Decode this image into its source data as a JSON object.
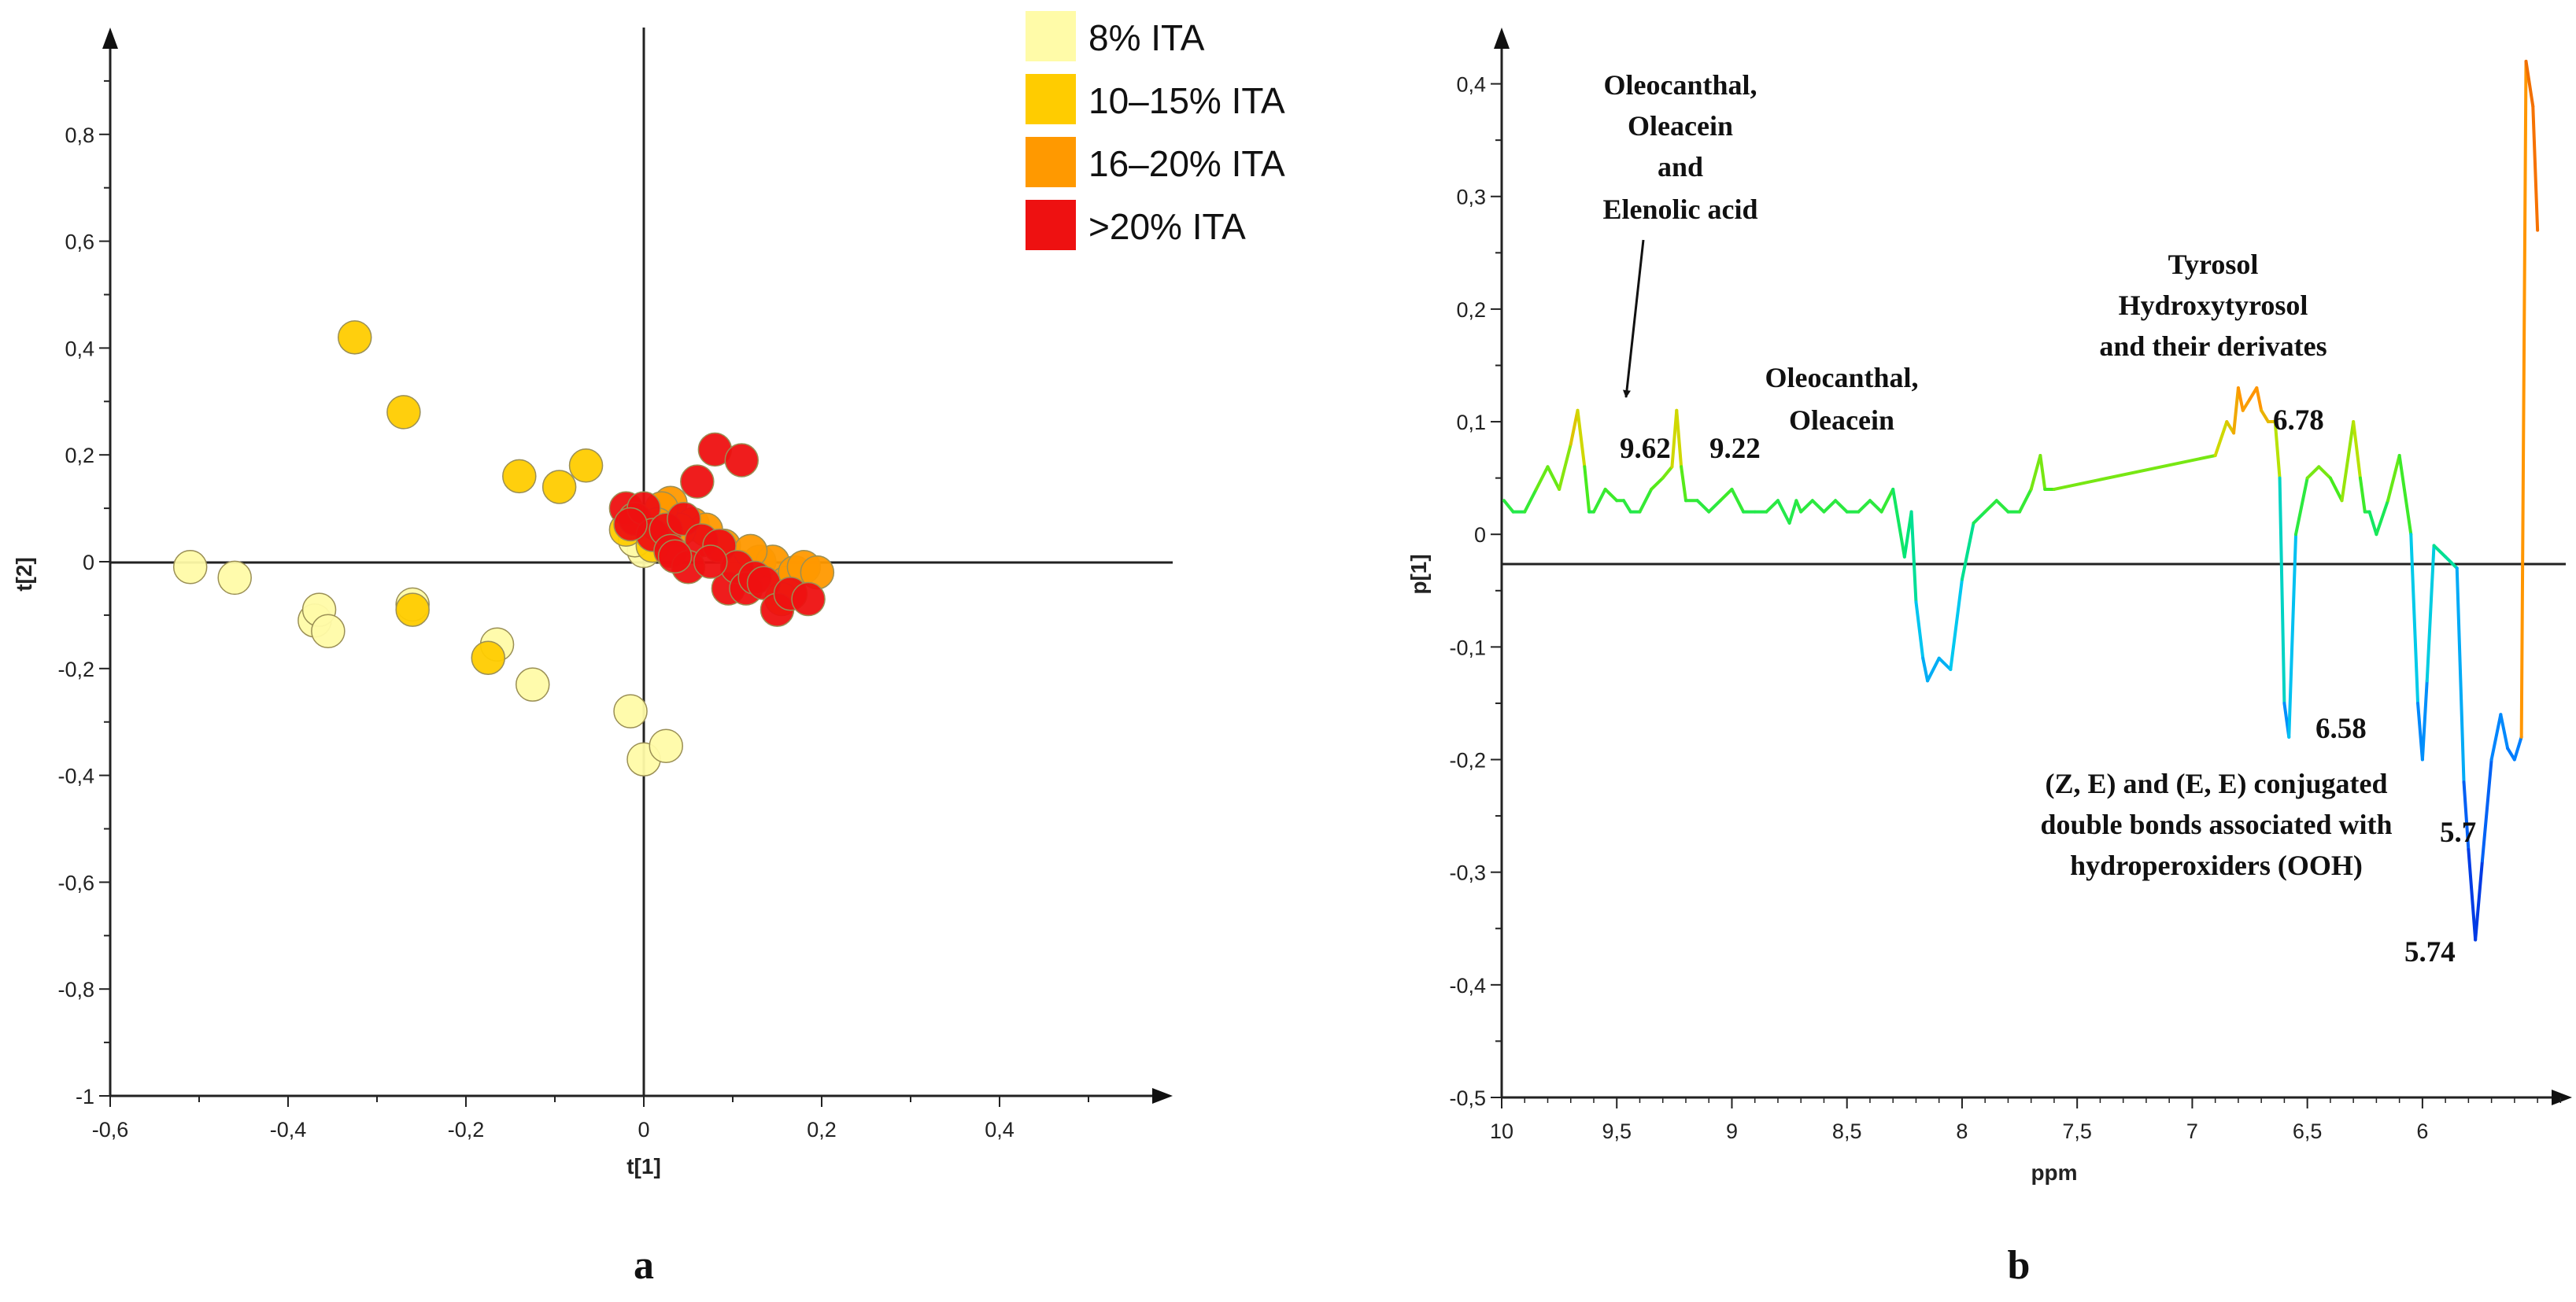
{
  "chart_data": [
    {
      "panel_label": "a",
      "type": "scatter",
      "xlabel": "t[1]",
      "ylabel": "t[2]",
      "xlim": [
        -0.6,
        0.6
      ],
      "ylim": [
        -1,
        1
      ],
      "x_ticks": [
        "-0,6",
        "-0,4",
        "-0,2",
        "0",
        "0,2",
        "0,4"
      ],
      "y_ticks": [
        "-1",
        "-0,8",
        "-0,6",
        "-0,4",
        "-0,2",
        "0",
        "0,2",
        "0,4",
        "0,6",
        "0,8"
      ],
      "legend": [
        {
          "label": "8% ITA",
          "color": "#FFFBA8"
        },
        {
          "label": "10–15% ITA",
          "color": "#FFCC00"
        },
        {
          "label": "16–20% ITA",
          "color": "#FF9900"
        },
        {
          "label": ">20% ITA",
          "color": "#EE1111"
        }
      ],
      "series": [
        {
          "name": "8% ITA",
          "color": "#FFFBA8",
          "points": [
            [
              -0.51,
              -0.01
            ],
            [
              -0.46,
              -0.03
            ],
            [
              -0.37,
              -0.11
            ],
            [
              -0.365,
              -0.09
            ],
            [
              -0.355,
              -0.13
            ],
            [
              -0.26,
              -0.08
            ],
            [
              -0.165,
              -0.155
            ],
            [
              -0.125,
              -0.23
            ],
            [
              -0.015,
              -0.28
            ],
            [
              0.0,
              -0.37
            ],
            [
              0.025,
              -0.345
            ],
            [
              0.0,
              0.02
            ],
            [
              -0.01,
              0.04
            ]
          ]
        },
        {
          "name": "10–15% ITA",
          "color": "#FFCC00",
          "points": [
            [
              -0.325,
              0.42
            ],
            [
              -0.27,
              0.28
            ],
            [
              -0.26,
              -0.09
            ],
            [
              -0.175,
              -0.18
            ],
            [
              -0.14,
              0.16
            ],
            [
              -0.095,
              0.14
            ],
            [
              -0.065,
              0.18
            ],
            [
              -0.02,
              0.06
            ],
            [
              0.01,
              0.03
            ]
          ]
        },
        {
          "name": "16–20% ITA",
          "color": "#FF9900",
          "points": [
            [
              0.03,
              0.11
            ],
            [
              0.055,
              0.07
            ],
            [
              0.07,
              0.06
            ],
            [
              0.09,
              0.03
            ],
            [
              0.11,
              -0.01
            ],
            [
              0.13,
              0.0
            ],
            [
              0.145,
              0.0
            ],
            [
              0.16,
              -0.04
            ],
            [
              0.17,
              -0.02
            ],
            [
              0.18,
              -0.01
            ],
            [
              0.195,
              -0.02
            ],
            [
              0.155,
              -0.07
            ],
            [
              0.12,
              0.02
            ],
            [
              0.04,
              0.06
            ],
            [
              0.02,
              0.1
            ],
            [
              0.015,
              0.07
            ]
          ]
        },
        {
          "name": ">20% ITA",
          "color": "#EE1111",
          "points": [
            [
              -0.02,
              0.1
            ],
            [
              -0.01,
              0.08
            ],
            [
              0.0,
              0.1
            ],
            [
              0.01,
              0.05
            ],
            [
              0.025,
              0.06
            ],
            [
              0.03,
              0.02
            ],
            [
              0.045,
              0.08
            ],
            [
              0.06,
              0.15
            ],
            [
              0.065,
              0.04
            ],
            [
              0.08,
              0.21
            ],
            [
              0.085,
              0.03
            ],
            [
              0.095,
              -0.05
            ],
            [
              0.105,
              -0.01
            ],
            [
              0.11,
              0.19
            ],
            [
              0.115,
              -0.05
            ],
            [
              0.125,
              -0.03
            ],
            [
              0.135,
              -0.04
            ],
            [
              0.15,
              -0.09
            ],
            [
              0.165,
              -0.06
            ],
            [
              0.185,
              -0.07
            ],
            [
              0.05,
              -0.01
            ],
            [
              0.035,
              0.01
            ],
            [
              -0.015,
              0.07
            ],
            [
              0.075,
              0.0
            ]
          ]
        }
      ]
    },
    {
      "panel_label": "b",
      "type": "line",
      "xlabel": "ppm",
      "ylabel": "p[1]",
      "xlim": [
        10,
        5.35
      ],
      "ylim": [
        -0.5,
        0.45
      ],
      "x_ticks": [
        "10",
        "9,5",
        "9",
        "8,5",
        "8",
        "7,5",
        "7",
        "6,5",
        "6"
      ],
      "y_ticks": [
        "-0,5",
        "-0,4",
        "-0,3",
        "-0,2",
        "-0,1",
        "0",
        "0,1",
        "0,2",
        "0,3",
        "0,4"
      ],
      "series": [
        {
          "name": "p[1]",
          "x": [
            9.99,
            9.95,
            9.9,
            9.85,
            9.8,
            9.75,
            9.7,
            9.67,
            9.64,
            9.62,
            9.6,
            9.55,
            9.5,
            9.47,
            9.44,
            9.4,
            9.35,
            9.3,
            9.26,
            9.24,
            9.22,
            9.2,
            9.15,
            9.1,
            9.05,
            9.0,
            8.95,
            8.9,
            8.85,
            8.8,
            8.75,
            8.72,
            8.7,
            8.65,
            8.6,
            8.55,
            8.5,
            8.45,
            8.4,
            8.35,
            8.3,
            8.25,
            8.22,
            8.2,
            8.17,
            8.15,
            8.1,
            8.05,
            8.0,
            7.95,
            7.9,
            7.85,
            7.8,
            7.75,
            7.7,
            7.66,
            7.64,
            7.6,
            6.9,
            6.85,
            6.82,
            6.8,
            6.78,
            6.75,
            6.72,
            6.7,
            6.67,
            6.64,
            6.62,
            6.6,
            6.58,
            6.55,
            6.5,
            6.45,
            6.4,
            6.35,
            6.3,
            6.27,
            6.25,
            6.23,
            6.2,
            6.15,
            6.1,
            6.05,
            6.02,
            6.0,
            5.98,
            5.95,
            5.9,
            5.85,
            5.82,
            5.8,
            5.77,
            5.74,
            5.7,
            5.66,
            5.63,
            5.6,
            5.57,
            5.55,
            5.52,
            5.5
          ],
          "y": [
            0.03,
            0.02,
            0.02,
            0.04,
            0.06,
            0.04,
            0.08,
            0.11,
            0.06,
            0.02,
            0.02,
            0.04,
            0.03,
            0.03,
            0.02,
            0.02,
            0.04,
            0.05,
            0.06,
            0.11,
            0.06,
            0.03,
            0.03,
            0.02,
            0.03,
            0.04,
            0.02,
            0.02,
            0.02,
            0.03,
            0.01,
            0.03,
            0.02,
            0.03,
            0.02,
            0.03,
            0.02,
            0.02,
            0.03,
            0.02,
            0.04,
            -0.02,
            0.02,
            -0.06,
            -0.11,
            -0.13,
            -0.11,
            -0.12,
            -0.04,
            0.01,
            0.02,
            0.03,
            0.02,
            0.02,
            0.04,
            0.07,
            0.04,
            0.04,
            0.07,
            0.1,
            0.09,
            0.13,
            0.11,
            0.12,
            0.13,
            0.11,
            0.1,
            0.1,
            0.05,
            -0.15,
            -0.18,
            0.0,
            0.05,
            0.06,
            0.05,
            0.03,
            0.1,
            0.05,
            0.02,
            0.02,
            0.0,
            0.03,
            0.07,
            0.0,
            -0.15,
            -0.2,
            -0.13,
            -0.01,
            -0.02,
            -0.03,
            -0.22,
            -0.28,
            -0.36,
            -0.29,
            -0.2,
            -0.16,
            -0.19,
            -0.2,
            -0.18,
            0.42,
            0.38,
            0.27
          ]
        }
      ],
      "annotations": [
        {
          "lines": [
            "Oleocanthal,",
            "Oleacein",
            "and",
            "Elenolic acid"
          ]
        },
        {
          "lines": [
            "Oleocanthal,",
            "Oleacein"
          ]
        },
        {
          "lines": [
            "Tyrosol",
            "Hydroxytyrosol",
            "and their derivates"
          ]
        },
        {
          "lines": [
            "(Z, E) and (E, E) conjugated",
            "double bonds associated with",
            "hydroperoxiders (OOH)"
          ]
        }
      ],
      "peak_labels": [
        "9.62",
        "9.22",
        "6.78",
        "6.58",
        "5.7",
        "5.74"
      ]
    }
  ]
}
